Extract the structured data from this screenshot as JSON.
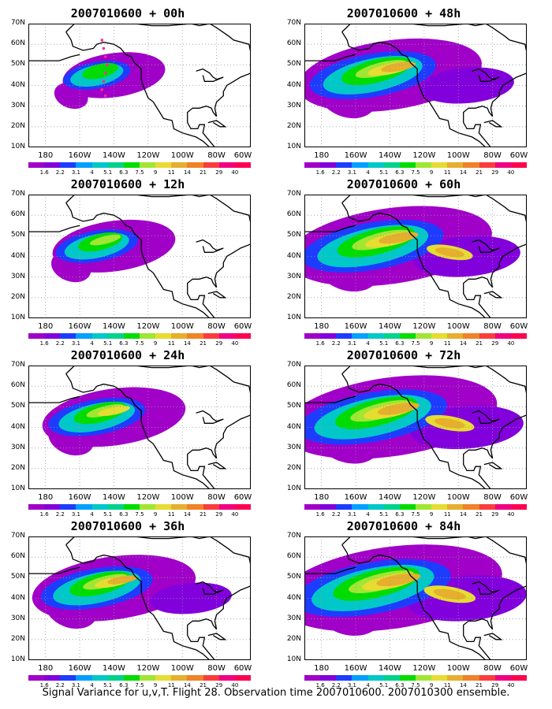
{
  "panels": [
    {
      "title": "2007010600 + 00h",
      "intensity": 0.35,
      "flight_track": true
    },
    {
      "title": "2007010600 + 48h",
      "intensity": 0.75,
      "flight_track": false
    },
    {
      "title": "2007010600 + 12h",
      "intensity": 0.45,
      "flight_track": false
    },
    {
      "title": "2007010600 + 60h",
      "intensity": 0.85,
      "flight_track": false
    },
    {
      "title": "2007010600 + 24h",
      "intensity": 0.55,
      "flight_track": false
    },
    {
      "title": "2007010600 + 72h",
      "intensity": 0.9,
      "flight_track": false
    },
    {
      "title": "2007010600 + 36h",
      "intensity": 0.65,
      "flight_track": false
    },
    {
      "title": "2007010600 + 84h",
      "intensity": 0.95,
      "flight_track": false
    }
  ],
  "lat_labels": [
    "70N",
    "60N",
    "50N",
    "40N",
    "30N",
    "20N",
    "10N"
  ],
  "lon_labels": [
    "180",
    "160W",
    "140W",
    "120W",
    "100W",
    "80W",
    "60W"
  ],
  "colorbar_labels": [
    "1.6",
    "2.2",
    "3.1",
    "4",
    "5.1",
    "6.3",
    "7.5",
    "9",
    "11",
    "14",
    "21",
    "29",
    "40"
  ],
  "colorbar_colors": [
    "#a000c8",
    "#8200dc",
    "#1e3cff",
    "#00a0ff",
    "#00c8c8",
    "#00d28c",
    "#00dc00",
    "#a0e632",
    "#e6dc32",
    "#e6af2d",
    "#f08228",
    "#fa3c3c",
    "#f00082"
  ],
  "caption": "Signal Variance for u,v,T. Flight 28. Observation time 2007010600. 2007010300 ensemble."
}
